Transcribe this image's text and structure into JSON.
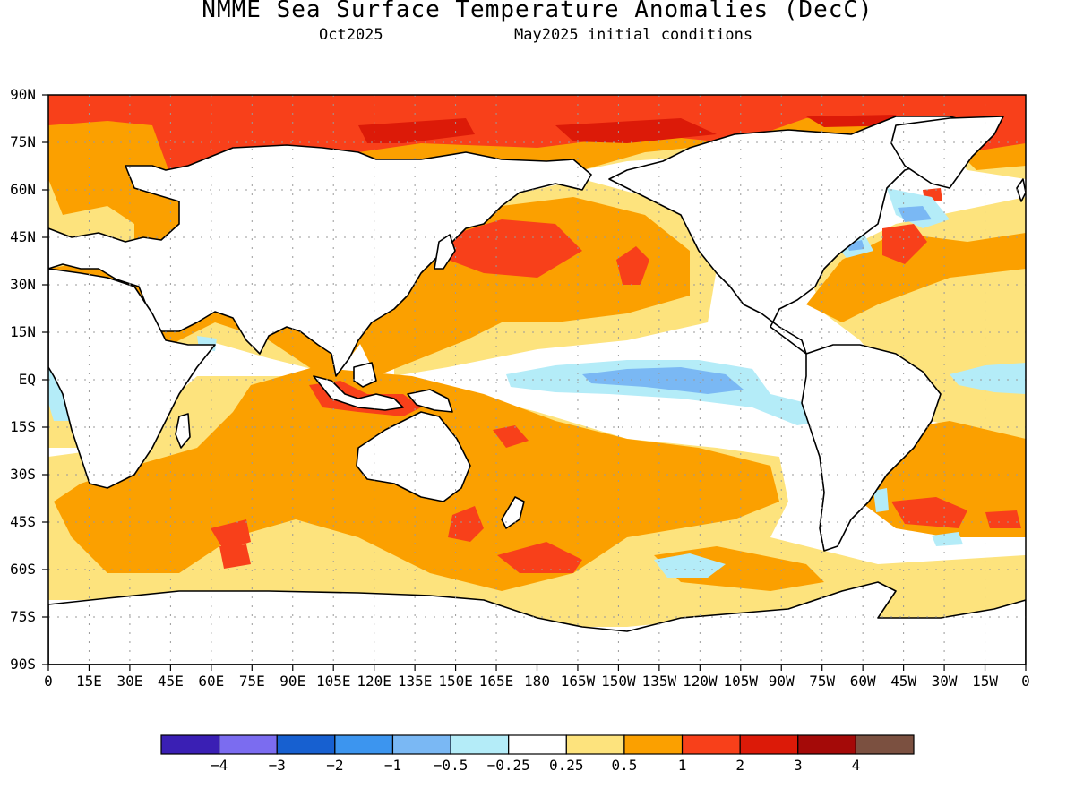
{
  "header": {
    "title": "NMME Sea Surface Temperature Anomalies (DecC)",
    "valid_month": "Oct2025",
    "initial_conditions": "May2025 initial conditions"
  },
  "map": {
    "lat_labels": [
      "90N",
      "75N",
      "60N",
      "45N",
      "30N",
      "15N",
      "EQ",
      "15S",
      "30S",
      "45S",
      "60S",
      "75S",
      "90S"
    ],
    "lon_labels": [
      "0",
      "15E",
      "30E",
      "45E",
      "60E",
      "75E",
      "90E",
      "105E",
      "120E",
      "135E",
      "150E",
      "165E",
      "180",
      "165W",
      "150W",
      "135W",
      "120W",
      "105W",
      "90W",
      "75W",
      "60W",
      "45W",
      "30W",
      "15W",
      "0"
    ],
    "grid": true
  },
  "colorbar": {
    "colors": [
      "#3a1fb4",
      "#7b6cf0",
      "#1760d0",
      "#3c95ef",
      "#7ab8f4",
      "#b4ecf8",
      "#ffffff",
      "#fde37d",
      "#fba000",
      "#f8401a",
      "#dc1a08",
      "#a40a08",
      "#7b5040"
    ],
    "labels": [
      "−4",
      "−3",
      "−2",
      "−1",
      "−0.5",
      "−0.25",
      "0.25",
      "0.5",
      "1",
      "2",
      "3",
      "4"
    ]
  }
}
